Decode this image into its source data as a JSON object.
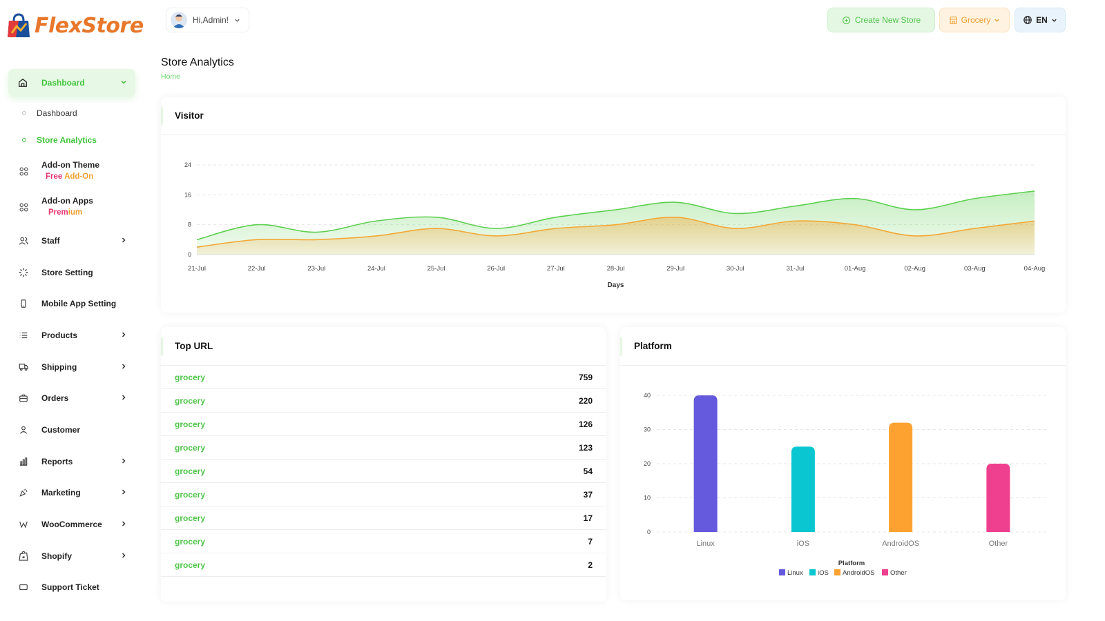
{
  "brand": {
    "name": "FlexStore",
    "color": "#e8772a"
  },
  "header": {
    "greeting": "Hi,Admin!",
    "create_store_label": "Create New Store",
    "store_type_label": "Grocery",
    "language_label": "EN"
  },
  "sidebar": {
    "dashboard_label": "Dashboard",
    "sub_items": [
      "Dashboard",
      "Store Analytics"
    ],
    "items": [
      {
        "label": "Add-on Theme",
        "badge": "Free",
        "badge2": " Add-On",
        "icon": "grid-icon",
        "chevron": false
      },
      {
        "label": "Add-on Apps",
        "badge": "Prem",
        "badge2": "ium",
        "icon": "grid-icon",
        "chevron": false
      },
      {
        "label": "Staff",
        "icon": "users-icon",
        "chevron": true
      },
      {
        "label": "Store Setting",
        "icon": "loader-icon",
        "chevron": false
      },
      {
        "label": "Mobile App Setting",
        "icon": "mobile-icon",
        "chevron": false
      },
      {
        "label": "Products",
        "icon": "list-icon",
        "chevron": true
      },
      {
        "label": "Shipping",
        "icon": "truck-icon",
        "chevron": true
      },
      {
        "label": "Orders",
        "icon": "briefcase-icon",
        "chevron": true
      },
      {
        "label": "Customer",
        "icon": "user-icon",
        "chevron": false
      },
      {
        "label": "Reports",
        "icon": "chart-icon",
        "chevron": true
      },
      {
        "label": "Marketing",
        "icon": "confetti-icon",
        "chevron": true
      },
      {
        "label": "WooCommerce",
        "icon": "woo-icon",
        "chevron": true
      },
      {
        "label": "Shopify",
        "icon": "shopify-icon",
        "chevron": true
      },
      {
        "label": "Support Ticket",
        "icon": "ticket-icon",
        "chevron": false
      }
    ]
  },
  "page": {
    "title": "Store Analytics",
    "breadcrumb": "Home"
  },
  "visitor": {
    "title": "Visitor"
  },
  "top_url": {
    "title": "Top URL",
    "rows": [
      {
        "url": "grocery",
        "count": "759"
      },
      {
        "url": "grocery",
        "count": "220"
      },
      {
        "url": "grocery",
        "count": "126"
      },
      {
        "url": "grocery",
        "count": "123"
      },
      {
        "url": "grocery",
        "count": "54"
      },
      {
        "url": "grocery",
        "count": "37"
      },
      {
        "url": "grocery",
        "count": "17"
      },
      {
        "url": "grocery",
        "count": "7"
      },
      {
        "url": "grocery",
        "count": "2"
      }
    ]
  },
  "platform": {
    "title": "Platform"
  },
  "chart_data": [
    {
      "type": "area",
      "title": "",
      "xlabel": "Days",
      "ylabel": "",
      "ylim": [
        0,
        24
      ],
      "yticks": [
        0,
        8,
        16,
        24
      ],
      "grid": true,
      "categories": [
        "21-Jul",
        "22-Jul",
        "23-Jul",
        "24-Jul",
        "25-Jul",
        "26-Jul",
        "27-Jul",
        "28-Jul",
        "29-Jul",
        "30-Jul",
        "31-Jul",
        "01-Aug",
        "02-Aug",
        "03-Aug",
        "04-Aug"
      ],
      "series": [
        {
          "values": [
            4,
            8,
            6,
            9,
            10,
            7,
            10,
            12,
            14,
            11,
            13,
            15,
            12,
            15,
            17
          ],
          "color": "#5ccf4f"
        },
        {
          "values": [
            2,
            4,
            4,
            5,
            7,
            5,
            7,
            8,
            10,
            7,
            9,
            8,
            5,
            7,
            9
          ],
          "color": "#f3a837"
        }
      ]
    },
    {
      "type": "bar",
      "title": "",
      "legend_title": "Platform",
      "legend_position": "bottom",
      "ylim": [
        0,
        40
      ],
      "yticks": [
        0,
        10,
        20,
        30,
        40
      ],
      "grid": true,
      "categories": [
        "Linux",
        "iOS",
        "AndroidOS",
        "Other"
      ],
      "values": [
        40,
        25,
        32,
        20
      ],
      "colors": [
        "#6559dd",
        "#0ac6d0",
        "#fda230",
        "#ef3f8f"
      ]
    }
  ]
}
